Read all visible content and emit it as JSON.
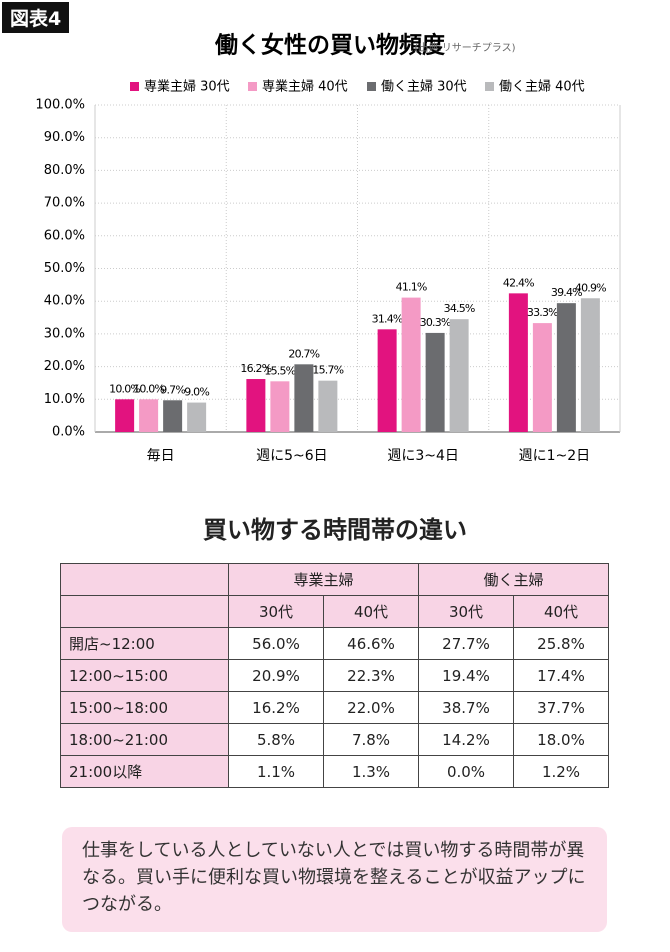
{
  "label": "図表4",
  "chart_data": {
    "type": "bar",
    "title": "働く女性の買い物頻度",
    "subtitle": "(出典:リサーチプラス)",
    "categories": [
      "毎日",
      "週に5~6日",
      "週に3~4日",
      "週に1~2日"
    ],
    "series": [
      {
        "name": "専業主婦 30代",
        "color": "#e2137f",
        "values": [
          10.0,
          16.2,
          31.4,
          42.4
        ],
        "value_labels": [
          "10.0%",
          "16.2%",
          "31.4%",
          "42.4%"
        ]
      },
      {
        "name": "専業主婦 40代",
        "color": "#f49ac5",
        "values": [
          10.0,
          15.5,
          41.1,
          33.3
        ],
        "value_labels": [
          "10.0%",
          "15.5%",
          "41.1%",
          "33.3%"
        ]
      },
      {
        "name": "働く主婦 30代",
        "color": "#6b6c6f",
        "values": [
          9.7,
          20.7,
          30.3,
          39.4
        ],
        "value_labels": [
          "9.7%",
          "20.7%",
          "30.3%",
          "39.4%"
        ]
      },
      {
        "name": "働く主婦 40代",
        "color": "#b9babc",
        "values": [
          9.0,
          15.7,
          34.5,
          40.9
        ],
        "value_labels": [
          "9.0%",
          "15.7%",
          "34.5%",
          "40.9%"
        ]
      }
    ],
    "ylim": [
      0,
      100
    ],
    "yticks": [
      {
        "value": 0,
        "label": "0.0%"
      },
      {
        "value": 10,
        "label": "10.0%"
      },
      {
        "value": 20,
        "label": "20.0%"
      },
      {
        "value": 30,
        "label": "30.0%"
      },
      {
        "value": 40,
        "label": "40.0%"
      },
      {
        "value": 50,
        "label": "50.0%"
      },
      {
        "value": 60,
        "label": "60.0%"
      },
      {
        "value": 70,
        "label": "70.0%"
      },
      {
        "value": 80,
        "label": "80.0%"
      },
      {
        "value": 90,
        "label": "90.0%"
      },
      {
        "value": 100,
        "label": "100.0%"
      }
    ],
    "grid": true
  },
  "table": {
    "title": "買い物する時間帯の違い",
    "groups": [
      "専業主婦",
      "働く主婦"
    ],
    "columns": [
      "30代",
      "40代",
      "30代",
      "40代"
    ],
    "rows": [
      [
        "開店~12:00",
        "56.0%",
        "46.6%",
        "27.7%",
        "25.8%"
      ],
      [
        "12:00~15:00",
        "20.9%",
        "22.3%",
        "19.4%",
        "17.4%"
      ],
      [
        "15:00~18:00",
        "16.2%",
        "22.0%",
        "38.7%",
        "37.7%"
      ],
      [
        "18:00~21:00",
        "5.8%",
        "7.8%",
        "14.2%",
        "18.0%"
      ],
      [
        "21:00以降",
        "1.1%",
        "1.3%",
        "0.0%",
        "1.2%"
      ]
    ]
  },
  "note": "仕事をしている人としていない人とでは買い物する時間帯が異なる。買い手に便利な買い物環境を整えることが収益アップにつながる。"
}
